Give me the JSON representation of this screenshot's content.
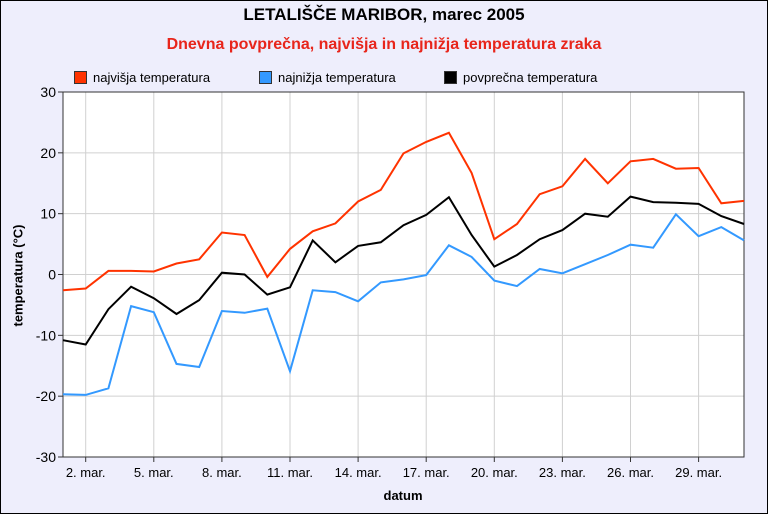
{
  "chart_data": {
    "type": "line",
    "title": "LETALIŠČE MARIBOR, marec 2005",
    "subtitle": "Dnevna povprečna, najvišja in najnižja  temperatura zraka",
    "xlabel": "datum",
    "ylabel": "temperatura (°C)",
    "ylim": [
      -30,
      30
    ],
    "yticks": [
      30,
      20,
      10,
      0,
      -10,
      -20,
      -30
    ],
    "xlim": [
      1,
      31
    ],
    "xtick_days": [
      2,
      5,
      8,
      11,
      14,
      17,
      20,
      23,
      26,
      29
    ],
    "xtick_labels": [
      "2. mar.",
      "5. mar.",
      "8. mar.",
      "11. mar.",
      "14. mar.",
      "17. mar.",
      "20. mar.",
      "23. mar.",
      "26. mar.",
      "29. mar."
    ],
    "grid": true,
    "legend_position": "top",
    "x": [
      1,
      2,
      3,
      4,
      5,
      6,
      7,
      8,
      9,
      10,
      11,
      12,
      13,
      14,
      15,
      16,
      17,
      18,
      19,
      20,
      21,
      22,
      23,
      24,
      25,
      26,
      27,
      28,
      29,
      30,
      31
    ],
    "series": [
      {
        "name": "najvišja temperatura",
        "color": "#ff3300",
        "values": [
          -2.6,
          -2.3,
          0.6,
          0.6,
          0.5,
          1.8,
          2.5,
          6.9,
          6.5,
          -0.4,
          4.2,
          7.1,
          8.4,
          12.0,
          13.9,
          19.9,
          21.8,
          23.3,
          16.7,
          5.8,
          8.3,
          13.2,
          14.5,
          19.0,
          15.0,
          18.6,
          19.0,
          17.4,
          17.5,
          11.7,
          12.1
        ]
      },
      {
        "name": "najnižja temperatura",
        "color": "#3399ff",
        "values": [
          -19.7,
          -19.8,
          -18.7,
          -5.2,
          -6.2,
          -14.7,
          -15.2,
          -6.0,
          -6.3,
          -5.6,
          -15.9,
          -2.6,
          -2.9,
          -4.4,
          -1.3,
          -0.8,
          -0.1,
          4.8,
          2.9,
          -1.0,
          -1.9,
          0.9,
          0.2,
          1.7,
          3.2,
          4.9,
          4.4,
          9.9,
          6.3,
          7.8,
          5.6
        ]
      },
      {
        "name": "povprečna temperatura",
        "color": "#000000",
        "values": [
          -10.8,
          -11.5,
          -5.7,
          -2.0,
          -3.9,
          -6.5,
          -4.2,
          0.3,
          0.0,
          -3.3,
          -2.1,
          5.6,
          2.0,
          4.7,
          5.3,
          8.1,
          9.8,
          12.7,
          6.5,
          1.3,
          3.2,
          5.8,
          7.3,
          10.0,
          9.5,
          12.8,
          11.9,
          11.8,
          11.6,
          9.6,
          8.3
        ]
      }
    ]
  }
}
